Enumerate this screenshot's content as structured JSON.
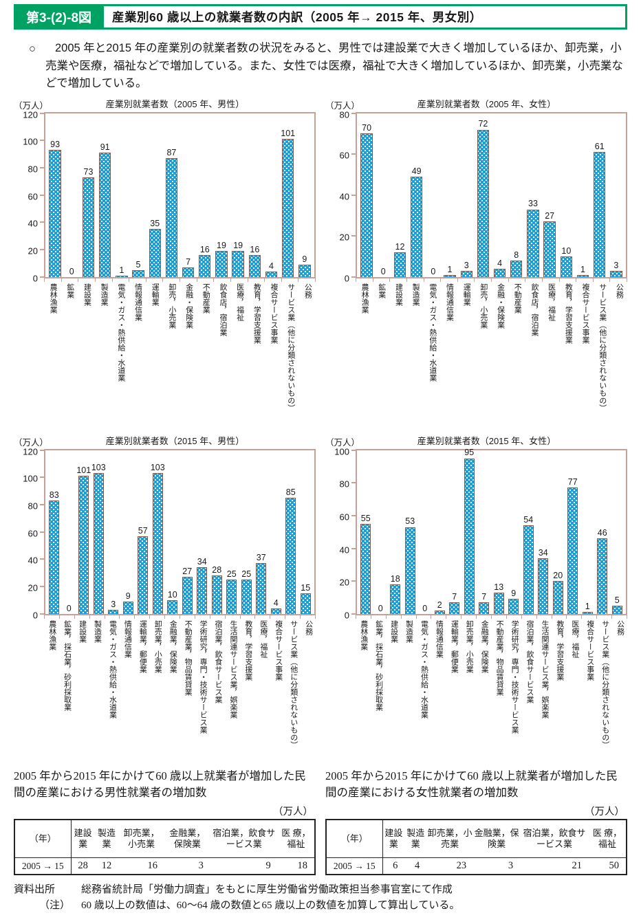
{
  "header": {
    "figure_label": "第3-(2)-8図",
    "title": "産業別60 歳以上の就業者数の内訳（2005 年→ 2015 年、男女別）"
  },
  "intro": {
    "bullet": "○",
    "text": "2005 年と2015 年の産業別の就業者数の状況をみると、男性では建設業で大きく増加しているほか、卸売業，小売業や医療，福祉などで増加している。また、女性では医療，福祉で大きく増加しているほか、卸売業，小売業などで増加している。"
  },
  "chart_data": [
    {
      "type": "bar",
      "title": "産業別就業者数（2005 年、男性）",
      "unit_label": "（万人）",
      "ylim": [
        0,
        120
      ],
      "ytick_interval": 20,
      "grid": false,
      "legend_position": "none",
      "categories": [
        "農林漁業",
        "鉱業",
        "建設業",
        "製造業",
        "電気・ガス・熱供給・水道業",
        "情報通信業",
        "運輸業",
        "卸売，小売業",
        "金融・保険業",
        "不動産業",
        "飲食店，宿泊業",
        "医療，福祉",
        "教育，学習支援業",
        "複合サービス事業",
        "サービス業（他に分類されないもの）",
        "公務"
      ],
      "values": [
        93,
        0,
        73,
        91,
        1,
        5,
        35,
        87,
        7,
        16,
        19,
        19,
        16,
        4,
        101,
        9
      ]
    },
    {
      "type": "bar",
      "title": "産業別就業者数（2005 年、女性）",
      "unit_label": "（万人）",
      "ylim": [
        0,
        80
      ],
      "ytick_interval": 20,
      "grid": false,
      "legend_position": "none",
      "categories": [
        "農林漁業",
        "鉱業",
        "建設業",
        "製造業",
        "電気・ガス・熱供給・水道業",
        "情報通信業",
        "運輸業",
        "卸売，小売業",
        "金融・保険業",
        "不動産業",
        "飲食店，宿泊業",
        "医療，福祉",
        "教育，学習支援業",
        "複合サービス事業",
        "サービス業（他に分類されないもの）",
        "公務"
      ],
      "values": [
        70,
        0,
        12,
        49,
        0,
        1,
        3,
        72,
        4,
        8,
        33,
        27,
        10,
        1,
        61,
        3
      ]
    },
    {
      "type": "bar",
      "title": "産業別就業者数（2015 年、男性）",
      "unit_label": "（万人）",
      "ylim": [
        0,
        120
      ],
      "ytick_interval": 20,
      "grid": false,
      "legend_position": "none",
      "categories": [
        "農林漁業",
        "鉱業，採石業，砂利採取業",
        "建設業",
        "製造業",
        "電気・ガス・熱供給・水道業",
        "情報通信業",
        "運輸業，郵便業",
        "卸売業，小売業",
        "金融業，保険業",
        "不動産業，物品賃貸業",
        "学術研究，専門・技術サービス業",
        "宿泊業，飲食サービス業",
        "生活関連サービス業，娯楽業",
        "教育，学習支援業",
        "医療，福祉",
        "複合サービス事業",
        "サービス業（他に分類されないもの）",
        "公務"
      ],
      "values": [
        83,
        0,
        101,
        103,
        3,
        9,
        57,
        103,
        10,
        27,
        34,
        28,
        25,
        25,
        37,
        4,
        85,
        15
      ]
    },
    {
      "type": "bar",
      "title": "産業別就業者数（2015 年、女性）",
      "unit_label": "（万人）",
      "ylim": [
        0,
        100
      ],
      "ytick_interval": 20,
      "grid": false,
      "legend_position": "none",
      "categories": [
        "農林漁業",
        "鉱業，採石業，砂利採取業",
        "建設業",
        "製造業",
        "電気・ガス・熱供給・水道業",
        "情報通信業",
        "運輸業，郵便業",
        "卸売業，小売業",
        "金融業，保険業",
        "不動産業，物品賃貸業",
        "学術研究，専門・技術サービス業",
        "宿泊業，飲食サービス業",
        "生活関連サービス業，娯楽業",
        "教育，学習支援業",
        "医療，福祉",
        "複合サービス事業",
        "サービス業（他に分類されないもの）",
        "公務"
      ],
      "values": [
        55,
        0,
        18,
        53,
        0,
        2,
        7,
        95,
        7,
        13,
        9,
        54,
        34,
        20,
        77,
        1,
        46,
        5
      ]
    }
  ],
  "tables": [
    {
      "caption": "2005 年から2015 年にかけて60 歳以上就業者が増加した民間の産業における男性就業者の増加数",
      "unit": "（万人）",
      "year_header": "（年）",
      "columns": [
        "建設業",
        "製造業",
        "卸売業，小売業",
        "金融業，保険業",
        "宿泊業，飲食サービス業",
        "医 療，福祉"
      ],
      "row_label": "2005 → 15",
      "values": [
        28,
        12,
        16,
        3,
        9,
        18
      ]
    },
    {
      "caption": "2005 年から2015 年にかけて60 歳以上就業者が増加した民間の産業における女性就業者の増加数",
      "unit": "（万人）",
      "year_header": "（年）",
      "columns": [
        "建設業",
        "製造業",
        "卸売業，小売業",
        "金融業，保険業",
        "宿泊業，飲食サービス業",
        "医 療，福祉"
      ],
      "row_label": "2005 → 15",
      "values": [
        6,
        4,
        23,
        3,
        21,
        50
      ]
    }
  ],
  "footnotes": {
    "source_label": "資料出所",
    "source_text": "総務省統計局「労働力調査」をもとに厚生労働省労働政策担当参事官室にて作成",
    "note_label": "（注）",
    "note_text": "60 歳以上の数値は、60～64 歳の数値と65 歳以上の数値を加算して算出している。"
  },
  "colors": {
    "header_green": "#00a263",
    "bar_fill": "#1b9ed6",
    "bar_border": "#7d564c",
    "axis": "#c7a099"
  }
}
